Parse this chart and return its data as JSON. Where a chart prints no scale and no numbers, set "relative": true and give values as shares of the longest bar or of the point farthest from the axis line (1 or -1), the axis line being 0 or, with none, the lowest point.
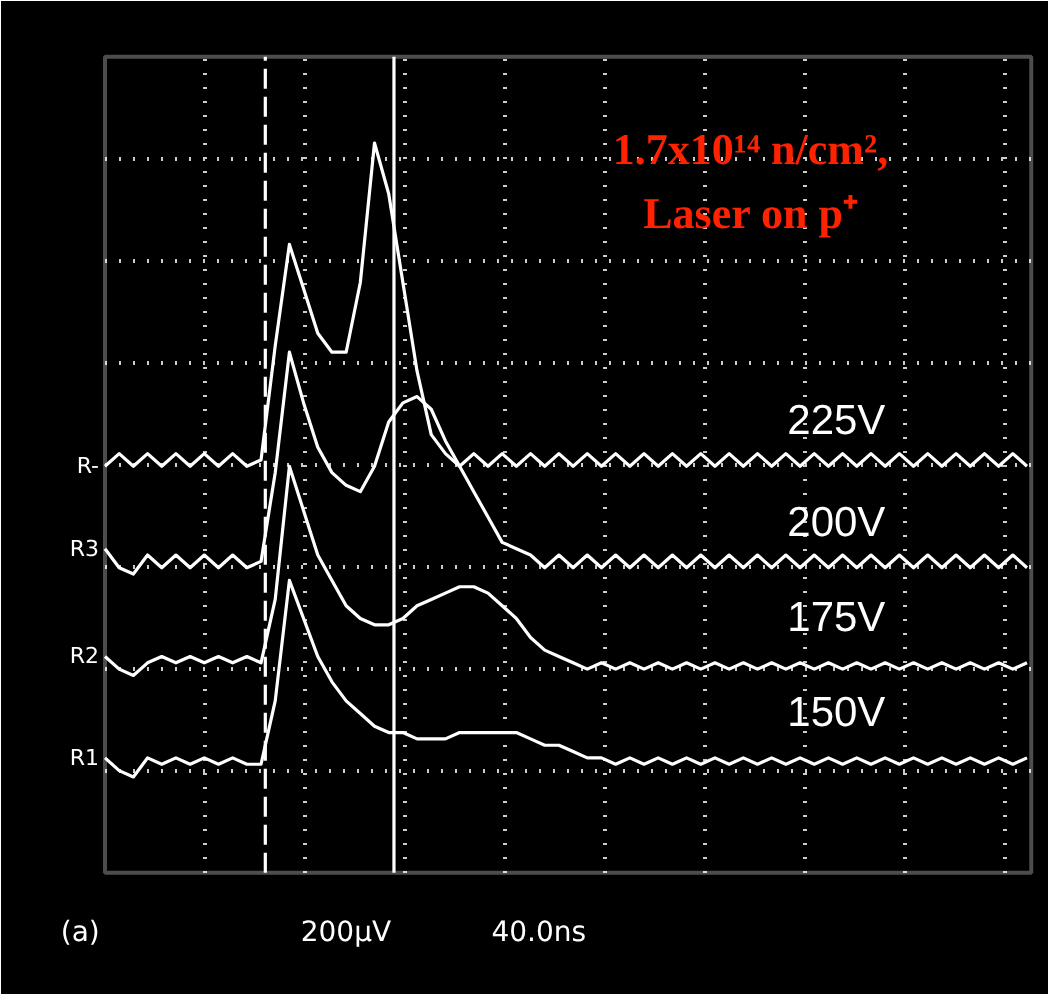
{
  "chart_data": {
    "type": "line",
    "relative": true,
    "title": "1.7x10¹⁴ n/cm²,",
    "subtitle": "Laser on p⁺",
    "categories": [
      null,
      null,
      null,
      null,
      null,
      null,
      null,
      null,
      null,
      null,
      null,
      null,
      null,
      null,
      null,
      null,
      null,
      null,
      null,
      null,
      null,
      null,
      null,
      null,
      null,
      null,
      null,
      null,
      null,
      null,
      null,
      null,
      null,
      null,
      null,
      null,
      null,
      null,
      null,
      null,
      null,
      null,
      null,
      null,
      null,
      null,
      null,
      null,
      null,
      null,
      null,
      null,
      null,
      null,
      null,
      null,
      null,
      null,
      null,
      null,
      null,
      null,
      null,
      null,
      null,
      null
    ],
    "grid": true,
    "line_style": "solid",
    "series": [
      {
        "name": "225V",
        "color": "#ffffff",
        "values": [
          0.49,
          0.51,
          0.49,
          0.51,
          0.49,
          0.51,
          0.49,
          0.51,
          0.49,
          0.51,
          0.49,
          0.5,
          0.68,
          0.84,
          0.77,
          0.7,
          0.67,
          0.67,
          0.78,
          1.0,
          0.92,
          0.78,
          0.64,
          0.54,
          0.51,
          0.49,
          0.51,
          0.49,
          0.51,
          0.49,
          0.51,
          0.49,
          0.51,
          0.49,
          0.51,
          0.49,
          0.51,
          0.49,
          0.51,
          0.49,
          0.51,
          0.49,
          0.51,
          0.49,
          0.51,
          0.49,
          0.51,
          0.49,
          0.51,
          0.49,
          0.51,
          0.49,
          0.51,
          0.49,
          0.51,
          0.49,
          0.51,
          0.49,
          0.51,
          0.49,
          0.51,
          0.49,
          0.51,
          0.49,
          0.51,
          0.49
        ]
      },
      {
        "name": "200V",
        "color": "#ffffff",
        "values": [
          0.36,
          0.33,
          0.32,
          0.35,
          0.33,
          0.35,
          0.33,
          0.35,
          0.33,
          0.35,
          0.33,
          0.34,
          0.48,
          0.67,
          0.59,
          0.52,
          0.48,
          0.46,
          0.45,
          0.49,
          0.56,
          0.59,
          0.6,
          0.58,
          0.53,
          0.49,
          0.45,
          0.41,
          0.37,
          0.36,
          0.35,
          0.33,
          0.35,
          0.33,
          0.35,
          0.33,
          0.35,
          0.33,
          0.35,
          0.33,
          0.35,
          0.33,
          0.35,
          0.33,
          0.35,
          0.33,
          0.35,
          0.33,
          0.35,
          0.33,
          0.35,
          0.33,
          0.35,
          0.33,
          0.35,
          0.33,
          0.35,
          0.33,
          0.35,
          0.33,
          0.35,
          0.33,
          0.35,
          0.33,
          0.35,
          0.33
        ]
      },
      {
        "name": "175V",
        "color": "#ffffff",
        "values": [
          0.19,
          0.17,
          0.16,
          0.18,
          0.19,
          0.18,
          0.19,
          0.18,
          0.19,
          0.18,
          0.19,
          0.18,
          0.28,
          0.49,
          0.42,
          0.35,
          0.31,
          0.27,
          0.25,
          0.24,
          0.24,
          0.25,
          0.27,
          0.28,
          0.29,
          0.3,
          0.3,
          0.29,
          0.27,
          0.25,
          0.22,
          0.2,
          0.19,
          0.18,
          0.17,
          0.18,
          0.17,
          0.18,
          0.17,
          0.18,
          0.17,
          0.18,
          0.17,
          0.18,
          0.17,
          0.18,
          0.17,
          0.18,
          0.17,
          0.18,
          0.17,
          0.18,
          0.17,
          0.18,
          0.17,
          0.18,
          0.17,
          0.18,
          0.17,
          0.18,
          0.17,
          0.18,
          0.17,
          0.18,
          0.17,
          0.18
        ]
      },
      {
        "name": "150V",
        "color": "#ffffff",
        "values": [
          0.03,
          0.01,
          0,
          0.03,
          0.02,
          0.03,
          0.02,
          0.03,
          0.02,
          0.03,
          0.02,
          0.02,
          0.12,
          0.31,
          0.25,
          0.19,
          0.15,
          0.12,
          0.1,
          0.08,
          0.07,
          0.07,
          0.06,
          0.06,
          0.06,
          0.07,
          0.07,
          0.07,
          0.07,
          0.07,
          0.06,
          0.05,
          0.05,
          0.04,
          0.03,
          0.03,
          0.02,
          0.03,
          0.02,
          0.03,
          0.02,
          0.03,
          0.02,
          0.03,
          0.02,
          0.03,
          0.02,
          0.03,
          0.02,
          0.03,
          0.02,
          0.03,
          0.02,
          0.03,
          0.02,
          0.03,
          0.02,
          0.03,
          0.02,
          0.03,
          0.02,
          0.03,
          0.02,
          0.03,
          0.02,
          0.03
        ]
      }
    ],
    "annotations": [
      "R-",
      "R3",
      "R2",
      "R1",
      "(a)",
      "200µV",
      "40.0ns"
    ]
  }
}
